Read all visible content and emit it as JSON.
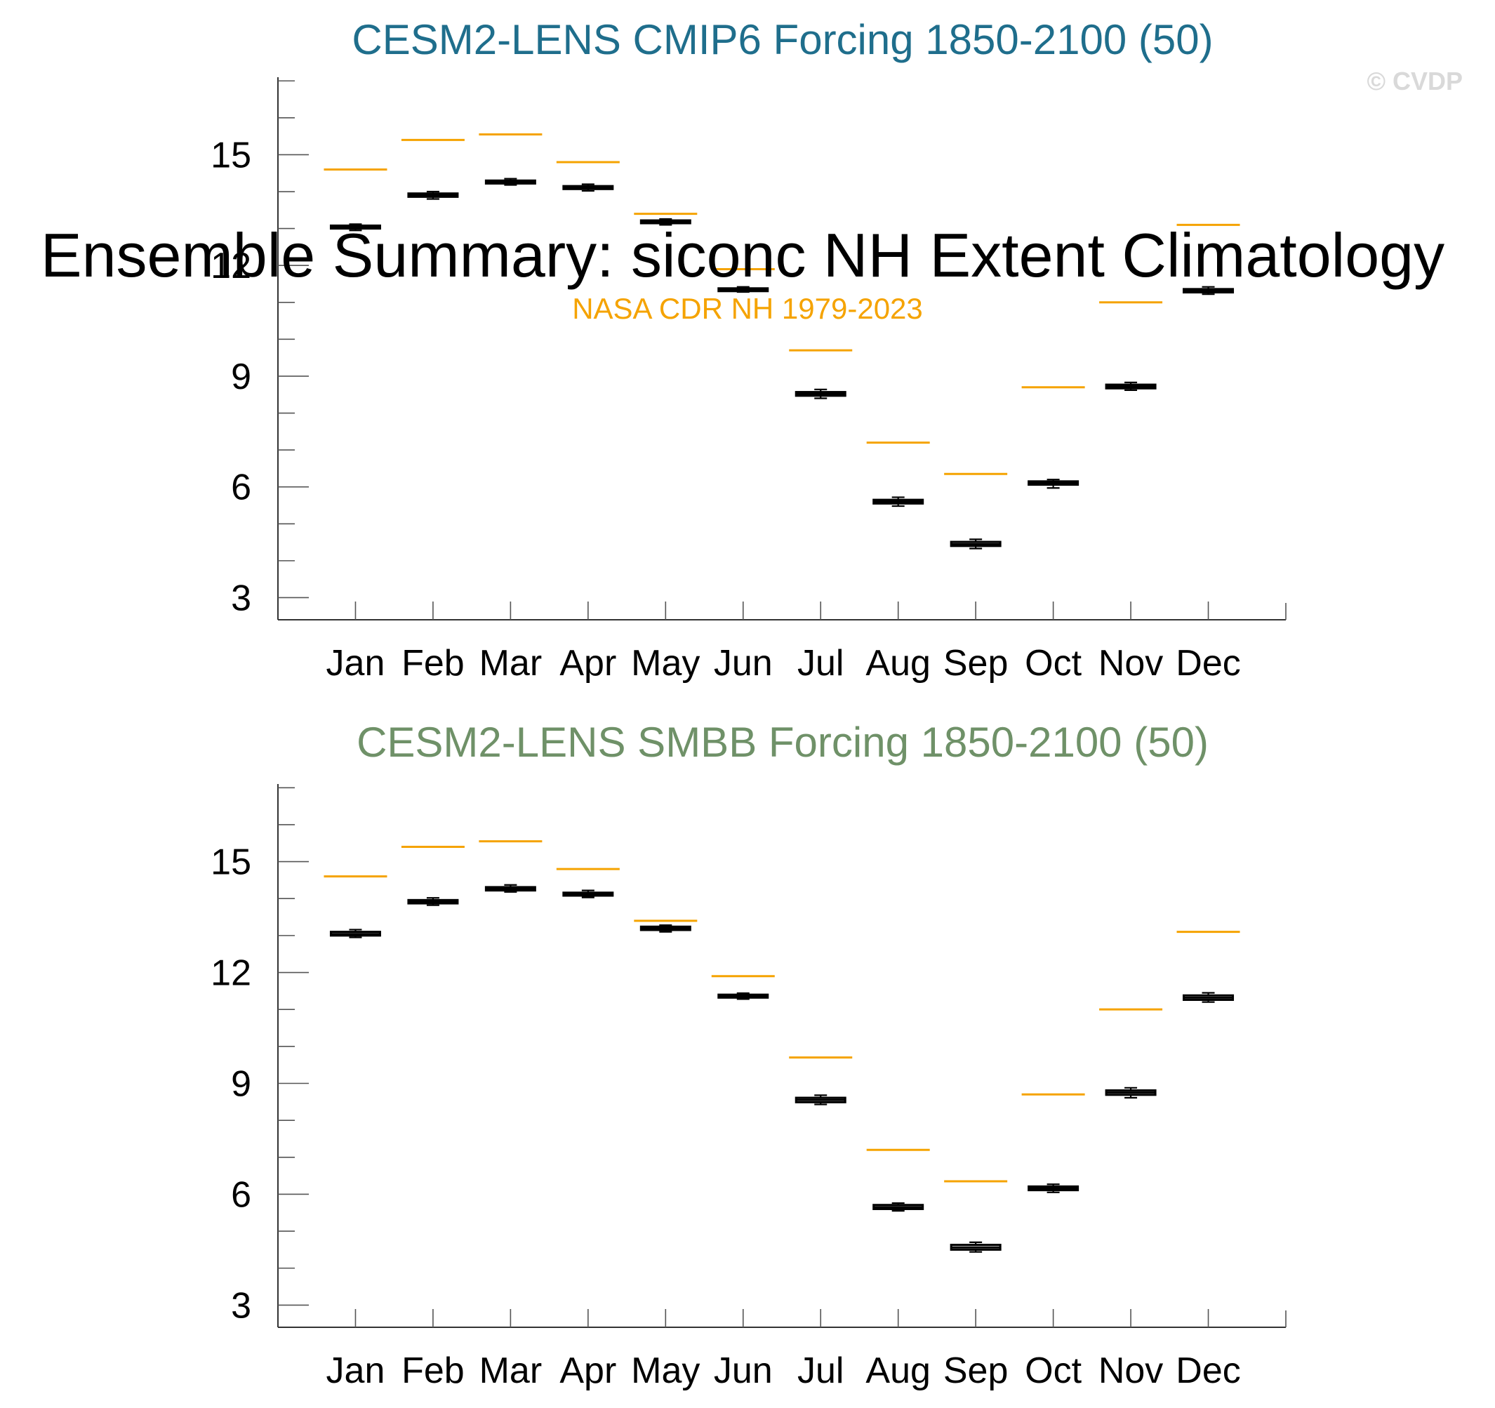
{
  "figure": {
    "main_title": "Ensemble Summary: siconc NH Extent Climatology",
    "obs_title": "NASA CDR NH 1979-2023",
    "watermark": "© CVDP",
    "colors": {
      "obs": "#f5a300",
      "panel1_title": "#1f6e8c",
      "panel2_title": "#6f9168",
      "box": "#000000"
    }
  },
  "chart_data": [
    {
      "type": "box",
      "title": "CESM2-LENS CMIP6 Forcing 1850-2100 (50)",
      "categories": [
        "Jan",
        "Feb",
        "Mar",
        "Apr",
        "May",
        "Jun",
        "Jul",
        "Aug",
        "Sep",
        "Oct",
        "Nov",
        "Dec"
      ],
      "ylim": [
        2.4,
        17.1
      ],
      "yticks": [
        3,
        6,
        9,
        12,
        15
      ],
      "minor_step": 1,
      "observed": [
        14.6,
        15.4,
        15.55,
        14.8,
        13.4,
        11.9,
        9.7,
        7.2,
        6.35,
        8.7,
        11.0,
        13.1
      ],
      "boxes": [
        {
          "min": 12.95,
          "q1": 13.0,
          "median": 13.03,
          "q3": 13.08,
          "max": 13.12
        },
        {
          "min": 13.8,
          "q1": 13.86,
          "median": 13.9,
          "q3": 13.95,
          "max": 14.0
        },
        {
          "min": 14.18,
          "q1": 14.22,
          "median": 14.26,
          "q3": 14.3,
          "max": 14.35
        },
        {
          "min": 14.02,
          "q1": 14.07,
          "median": 14.11,
          "q3": 14.15,
          "max": 14.2
        },
        {
          "min": 13.1,
          "q1": 13.15,
          "median": 13.18,
          "q3": 13.22,
          "max": 13.26
        },
        {
          "min": 11.28,
          "q1": 11.32,
          "median": 11.35,
          "q3": 11.38,
          "max": 11.42
        },
        {
          "min": 8.4,
          "q1": 8.47,
          "median": 8.52,
          "q3": 8.57,
          "max": 8.64
        },
        {
          "min": 5.48,
          "q1": 5.55,
          "median": 5.6,
          "q3": 5.65,
          "max": 5.72
        },
        {
          "min": 4.33,
          "q1": 4.4,
          "median": 4.45,
          "q3": 4.51,
          "max": 4.58
        },
        {
          "min": 5.97,
          "q1": 6.06,
          "median": 6.1,
          "q3": 6.15,
          "max": 6.2
        },
        {
          "min": 8.62,
          "q1": 8.67,
          "median": 8.72,
          "q3": 8.77,
          "max": 8.83
        },
        {
          "min": 11.22,
          "q1": 11.27,
          "median": 11.31,
          "q3": 11.36,
          "max": 11.42
        }
      ]
    },
    {
      "type": "box",
      "title": "CESM2-LENS SMBB Forcing 1850-2100 (50)",
      "categories": [
        "Jan",
        "Feb",
        "Mar",
        "Apr",
        "May",
        "Jun",
        "Jul",
        "Aug",
        "Sep",
        "Oct",
        "Nov",
        "Dec"
      ],
      "ylim": [
        2.4,
        17.1
      ],
      "yticks": [
        3,
        6,
        9,
        12,
        15
      ],
      "minor_step": 1,
      "observed": [
        14.6,
        15.4,
        15.55,
        14.8,
        13.4,
        11.9,
        9.7,
        7.2,
        6.35,
        8.7,
        11.0,
        13.1
      ],
      "boxes": [
        {
          "min": 12.95,
          "q1": 13.0,
          "median": 13.04,
          "q3": 13.1,
          "max": 13.16
        },
        {
          "min": 13.82,
          "q1": 13.87,
          "median": 13.91,
          "q3": 13.96,
          "max": 14.02
        },
        {
          "min": 14.18,
          "q1": 14.22,
          "median": 14.27,
          "q3": 14.31,
          "max": 14.37
        },
        {
          "min": 14.03,
          "q1": 14.08,
          "median": 14.12,
          "q3": 14.16,
          "max": 14.22
        },
        {
          "min": 13.1,
          "q1": 13.15,
          "median": 13.19,
          "q3": 13.24,
          "max": 13.28
        },
        {
          "min": 11.28,
          "q1": 11.32,
          "median": 11.36,
          "q3": 11.4,
          "max": 11.44
        },
        {
          "min": 8.43,
          "q1": 8.49,
          "median": 8.55,
          "q3": 8.61,
          "max": 8.68
        },
        {
          "min": 5.55,
          "q1": 5.6,
          "median": 5.65,
          "q3": 5.71,
          "max": 5.76
        },
        {
          "min": 4.44,
          "q1": 4.5,
          "median": 4.56,
          "q3": 4.63,
          "max": 4.7
        },
        {
          "min": 6.05,
          "q1": 6.11,
          "median": 6.16,
          "q3": 6.21,
          "max": 6.27
        },
        {
          "min": 8.61,
          "q1": 8.69,
          "median": 8.75,
          "q3": 8.81,
          "max": 8.88
        },
        {
          "min": 11.2,
          "q1": 11.26,
          "median": 11.32,
          "q3": 11.38,
          "max": 11.45
        }
      ]
    }
  ]
}
